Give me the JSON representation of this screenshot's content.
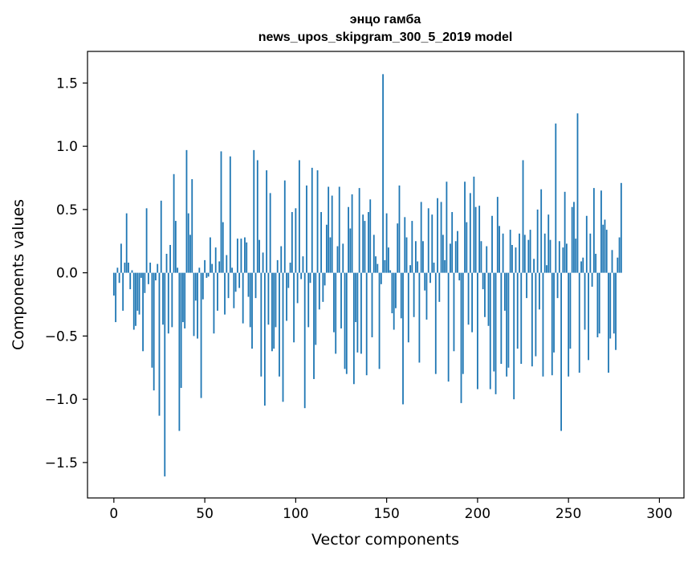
{
  "chart_data": {
    "type": "bar",
    "title": "энцо гамба",
    "subtitle": "news_upos_skipgram_300_5_2019 model",
    "xlabel": "Vector components",
    "ylabel": "Components values",
    "xlim": [
      -14.5,
      313.5
    ],
    "ylim": [
      -1.78,
      1.75
    ],
    "xticks": [
      0,
      50,
      100,
      150,
      200,
      250,
      300
    ],
    "xtick_labels": [
      "0",
      "50",
      "100",
      "150",
      "200",
      "250",
      "300"
    ],
    "yticks": [
      1.5,
      1.0,
      0.5,
      0.0,
      -0.5,
      -1.0,
      -1.5
    ],
    "ytick_labels": [
      "1.5",
      "1.0",
      "0.5",
      "0.0",
      "−0.5",
      "−1.0",
      "−1.5"
    ],
    "grid": false,
    "bar_color": "#1f77b4",
    "values": [
      -0.18,
      -0.39,
      0.04,
      -0.08,
      0.23,
      -0.3,
      0.08,
      0.47,
      0.08,
      -0.13,
      0.02,
      -0.45,
      -0.42,
      -0.3,
      -0.33,
      -0.04,
      -0.62,
      -0.16,
      0.51,
      -0.09,
      0.08,
      -0.75,
      -0.93,
      -0.06,
      0.07,
      -1.13,
      0.57,
      -0.41,
      -1.61,
      0.15,
      -0.48,
      0.22,
      -0.43,
      0.78,
      0.41,
      0.04,
      -1.25,
      -0.91,
      -0.39,
      -0.44,
      0.97,
      0.47,
      0.3,
      0.74,
      -0.5,
      -0.22,
      -0.52,
      0.04,
      -0.99,
      -0.21,
      0.1,
      -0.04,
      -0.03,
      0.28,
      0.07,
      -0.48,
      0.2,
      -0.3,
      0.09,
      0.96,
      0.4,
      -0.33,
      0.14,
      -0.2,
      0.92,
      0.04,
      -0.28,
      -0.15,
      0.27,
      -0.12,
      0.27,
      -0.4,
      0.28,
      0.24,
      -0.19,
      -0.43,
      -0.6,
      0.97,
      -0.2,
      0.89,
      0.26,
      -0.82,
      0.16,
      -1.05,
      0.81,
      -0.41,
      0.63,
      -0.62,
      -0.6,
      -0.43,
      0.1,
      -0.82,
      0.21,
      -1.02,
      0.73,
      -0.38,
      -0.12,
      0.08,
      0.48,
      -0.55,
      0.51,
      -0.24,
      0.89,
      -0.05,
      0.13,
      -1.07,
      0.69,
      -0.43,
      -0.08,
      0.83,
      -0.84,
      -0.57,
      0.81,
      -0.29,
      0.48,
      -0.23,
      -0.1,
      0.38,
      0.68,
      0.28,
      0.61,
      -0.47,
      -0.64,
      0.21,
      0.68,
      -0.44,
      0.23,
      -0.76,
      -0.8,
      0.52,
      0.35,
      0.62,
      -0.88,
      -0.39,
      -0.63,
      0.67,
      -0.64,
      0.46,
      0.41,
      -0.81,
      0.48,
      0.58,
      -0.51,
      0.3,
      0.13,
      0.07,
      -0.76,
      -0.09,
      1.57,
      0.1,
      0.47,
      0.2,
      0.02,
      -0.32,
      -0.45,
      -0.28,
      0.39,
      0.69,
      -0.36,
      -1.04,
      0.44,
      0.28,
      -0.55,
      0.06,
      0.41,
      -0.35,
      0.25,
      0.09,
      -0.71,
      0.56,
      0.25,
      -0.14,
      -0.37,
      0.51,
      -0.08,
      0.46,
      0.08,
      -0.8,
      0.59,
      -0.23,
      0.56,
      0.3,
      0.1,
      0.72,
      -0.86,
      0.23,
      0.48,
      -0.62,
      0.25,
      0.33,
      -0.06,
      -1.03,
      -0.8,
      0.72,
      0.4,
      -0.41,
      0.63,
      -0.47,
      0.76,
      0.52,
      -0.92,
      0.53,
      0.25,
      -0.13,
      -0.35,
      0.21,
      -0.42,
      -0.92,
      0.45,
      -0.78,
      -0.96,
      0.6,
      0.37,
      -0.72,
      0.31,
      -0.3,
      -0.82,
      -0.75,
      0.34,
      0.22,
      -1.0,
      0.2,
      -0.6,
      0.31,
      -0.72,
      0.89,
      0.3,
      -0.2,
      0.26,
      0.34,
      -0.74,
      0.11,
      -0.66,
      0.5,
      -0.29,
      0.66,
      -0.82,
      0.31,
      0.06,
      0.46,
      0.26,
      -0.81,
      -0.63,
      1.18,
      -0.2,
      0.25,
      -1.25,
      0.2,
      0.64,
      0.23,
      -0.82,
      -0.6,
      0.52,
      0.56,
      0.27,
      1.26,
      -0.79,
      0.09,
      0.12,
      -0.45,
      0.45,
      -0.69,
      0.31,
      -0.11,
      0.67,
      0.15,
      -0.51,
      -0.48,
      0.65,
      0.38,
      0.42,
      0.34,
      -0.79,
      -0.52,
      0.18,
      -0.48,
      -0.61,
      0.12,
      0.28,
      0.71
    ]
  }
}
